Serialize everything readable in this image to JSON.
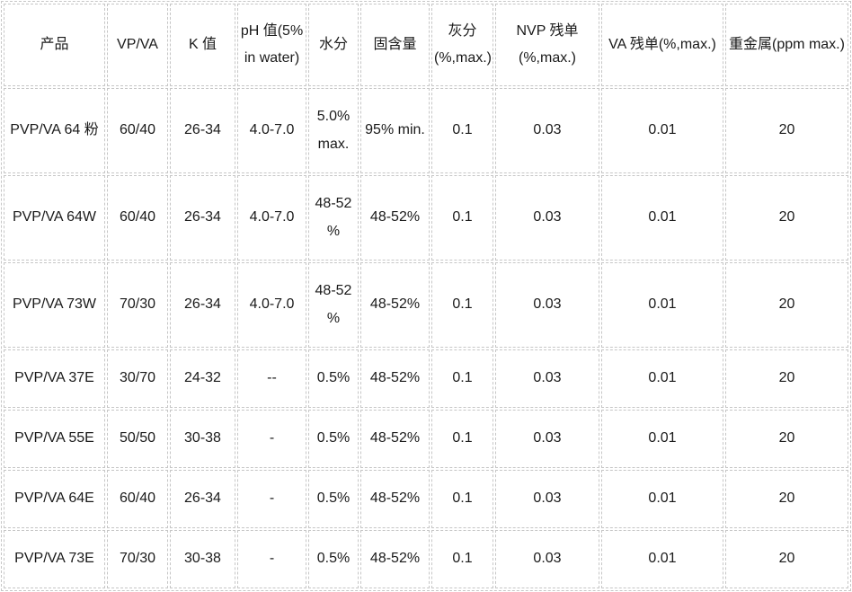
{
  "colors": {
    "border": "#c6c6c6",
    "text": "#1a1a1a",
    "background": "#ffffff"
  },
  "table": {
    "columns": [
      "产品",
      "VP/VA",
      "K 值",
      "pH 值(5% in water)",
      "水分",
      "固含量",
      "灰分 (%,max.)",
      "NVP 残单 (%,max.)",
      "VA 残单(%,max.)",
      "重金属(ppm max.)"
    ],
    "rows": [
      [
        "PVP/VA 64 粉",
        "60/40",
        "26-34",
        "4.0-7.0",
        "5.0% max.",
        "95% min.",
        "0.1",
        "0.03",
        "0.01",
        "20"
      ],
      [
        "PVP/VA 64W",
        "60/40",
        "26-34",
        "4.0-7.0",
        "48-52 %",
        "48-52%",
        "0.1",
        "0.03",
        "0.01",
        "20"
      ],
      [
        "PVP/VA 73W",
        "70/30",
        "26-34",
        "4.0-7.0",
        "48-52 %",
        "48-52%",
        "0.1",
        "0.03",
        "0.01",
        "20"
      ],
      [
        "PVP/VA 37E",
        "30/70",
        "24-32",
        "--",
        "0.5%",
        "48-52%",
        "0.1",
        "0.03",
        "0.01",
        "20"
      ],
      [
        "PVP/VA 55E",
        "50/50",
        "30-38",
        "-",
        "0.5%",
        "48-52%",
        "0.1",
        "0.03",
        "0.01",
        "20"
      ],
      [
        "PVP/VA 64E",
        "60/40",
        "26-34",
        "-",
        "0.5%",
        "48-52%",
        "0.1",
        "0.03",
        "0.01",
        "20"
      ],
      [
        "PVP/VA 73E",
        "70/30",
        "30-38",
        "-",
        "0.5%",
        "48-52%",
        "0.1",
        "0.03",
        "0.01",
        "20"
      ]
    ]
  }
}
